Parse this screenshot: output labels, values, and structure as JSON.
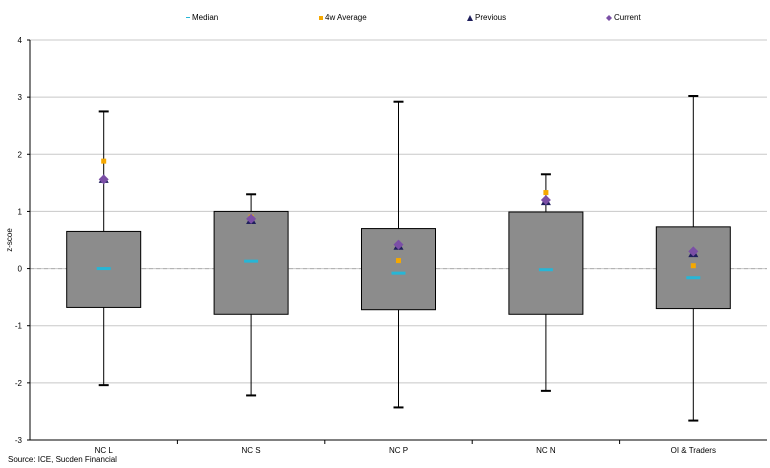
{
  "legend": {
    "median": "Median",
    "avg4w": "4w Average",
    "previous": "Previous",
    "current": "Current"
  },
  "source": "Source: ICE, Sucden Financial",
  "colors": {
    "box": "#8c8c8c",
    "median": "#27b6d6",
    "avg4w": "#f5a800",
    "previous": "#1f1f5c",
    "current": "#7b4fa6",
    "grid": "#c8c8c8"
  },
  "chart_data": {
    "type": "box",
    "title": "",
    "xlabel": "",
    "ylabel": "z-scoe",
    "ylim": [
      -3,
      4
    ],
    "yticks": [
      -3,
      -2,
      -1,
      0,
      1,
      2,
      3,
      4
    ],
    "grid": true,
    "legend_position": "top",
    "categories": [
      "NC L",
      "NC S",
      "NC P",
      "NC N",
      "OI & Traders"
    ],
    "series": [
      {
        "category": "NC L",
        "min": -2.04,
        "q1": -0.68,
        "median": 0.0,
        "q3": 0.65,
        "max": 2.75,
        "avg4w": 1.88,
        "previous": 1.57,
        "current": 1.56
      },
      {
        "category": "NC S",
        "min": -2.22,
        "q1": -0.8,
        "median": 0.13,
        "q3": 1.0,
        "max": 1.3,
        "avg4w": 0.9,
        "previous": 0.85,
        "current": 0.87
      },
      {
        "category": "NC P",
        "min": -2.43,
        "q1": -0.72,
        "median": -0.08,
        "q3": 0.7,
        "max": 2.92,
        "avg4w": 0.14,
        "previous": 0.4,
        "current": 0.42
      },
      {
        "category": "NC N",
        "min": -2.14,
        "q1": -0.8,
        "median": -0.02,
        "q3": 0.99,
        "max": 1.65,
        "avg4w": 1.33,
        "previous": 1.18,
        "current": 1.2
      },
      {
        "category": "OI & Traders",
        "min": -2.66,
        "q1": -0.7,
        "median": -0.16,
        "q3": 0.73,
        "max": 3.02,
        "avg4w": 0.05,
        "previous": 0.27,
        "current": 0.3
      }
    ]
  }
}
